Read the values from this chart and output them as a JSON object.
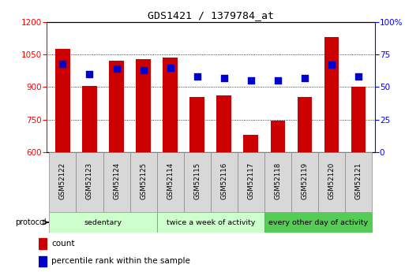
{
  "title": "GDS1421 / 1379784_at",
  "categories": [
    "GSM52122",
    "GSM52123",
    "GSM52124",
    "GSM52125",
    "GSM52114",
    "GSM52115",
    "GSM52116",
    "GSM52117",
    "GSM52118",
    "GSM52119",
    "GSM52120",
    "GSM52121"
  ],
  "count_values": [
    1075,
    905,
    1020,
    1030,
    1035,
    855,
    860,
    680,
    745,
    855,
    1130,
    900
  ],
  "percentile_values": [
    68,
    60,
    64,
    63,
    65,
    58,
    57,
    55,
    55,
    57,
    67,
    58
  ],
  "ylim_left": [
    600,
    1200
  ],
  "ylim_right": [
    0,
    100
  ],
  "yticks_left": [
    600,
    750,
    900,
    1050,
    1200
  ],
  "yticks_right": [
    0,
    25,
    50,
    75,
    100
  ],
  "bar_color": "#cc0000",
  "dot_color": "#0000cc",
  "groups": [
    {
      "label": "sedentary",
      "start": 0,
      "end": 4,
      "color": "#ccffcc"
    },
    {
      "label": "twice a week of activity",
      "start": 4,
      "end": 8,
      "color": "#ccffcc"
    },
    {
      "label": "every other day of activity",
      "start": 8,
      "end": 12,
      "color": "#55cc55"
    }
  ],
  "legend_items": [
    {
      "label": "count",
      "color": "#cc0000"
    },
    {
      "label": "percentile rank within the sample",
      "color": "#0000cc"
    }
  ],
  "protocol_label": "protocol"
}
